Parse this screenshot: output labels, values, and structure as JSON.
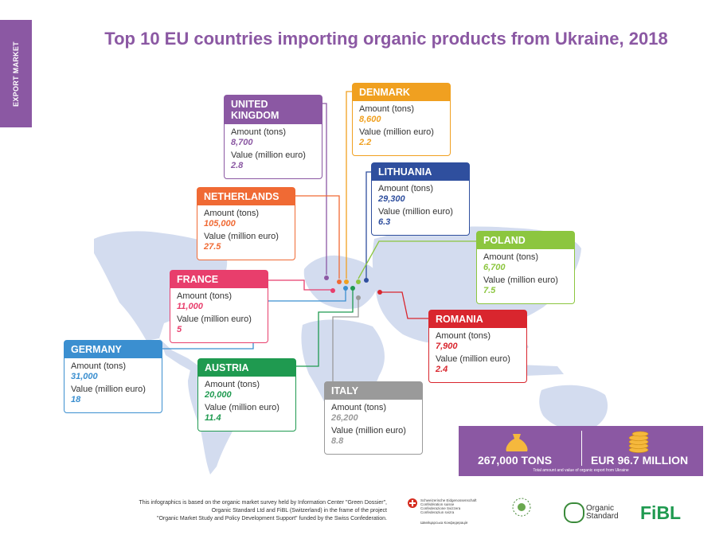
{
  "side_tab": "EXPORT MARKET",
  "title": "Top 10 EU countries importing organic products from Ukraine, 2018",
  "labels": {
    "amount": "Amount (tons)",
    "value": "Value (million euro)"
  },
  "chart_data": {
    "type": "table",
    "title": "Top 10 EU countries importing organic products from Ukraine, 2018",
    "columns": [
      "Amount (tons)",
      "Value (million euro)"
    ],
    "rows": [
      {
        "country": "UNITED KINGDOM",
        "amount": "8,700",
        "value": "2.8",
        "color": "#8b58a3"
      },
      {
        "country": "DENMARK",
        "amount": "8,600",
        "value": "2.2",
        "color": "#f0a020"
      },
      {
        "country": "LITHUANIA",
        "amount": "29,300",
        "value": "6.3",
        "color": "#2f4f9e"
      },
      {
        "country": "NETHERLANDS",
        "amount": "105,000",
        "value": "27.5",
        "color": "#f06a34"
      },
      {
        "country": "POLAND",
        "amount": "6,700",
        "value": "7.5",
        "color": "#8cc63f"
      },
      {
        "country": "FRANCE",
        "amount": "11,000",
        "value": "5",
        "color": "#e83e6c"
      },
      {
        "country": "ROMANIA",
        "amount": "7,900",
        "value": "2.4",
        "color": "#d9262e"
      },
      {
        "country": "GERMANY",
        "amount": "31,000",
        "value": "18",
        "color": "#3b8fd0"
      },
      {
        "country": "AUSTRIA",
        "amount": "20,000",
        "value": "11.4",
        "color": "#1f9a50"
      },
      {
        "country": "ITALY",
        "amount": "26,200",
        "value": "8.8",
        "color": "#9a9a9a"
      }
    ]
  },
  "summary": {
    "tons": "267,000 TONS",
    "euro": "EUR 96.7 MILLION",
    "caption": "Total amount and value of organic export from Ukraine"
  },
  "footer": {
    "line1": "This infographics is based on the organic market survey held by Information Center \"Green Dossier\",",
    "line2": "Organic Standard Ltd and FiBL (Switzerland) in the frame of the project",
    "line3": "\"Organic Market Study and Policy Development Support\" funded by the Swiss Confederation."
  },
  "logos": {
    "swiss_lines": [
      "Schweizerische Eidgenossenschaft",
      "Confédération suisse",
      "Confederazione Svizzera",
      "Confederaziun svizra"
    ],
    "swiss_ua": "Швейцарська Конфедерація",
    "organic_standard": [
      "Organic",
      "Standard"
    ],
    "fibl": "FiBL"
  }
}
